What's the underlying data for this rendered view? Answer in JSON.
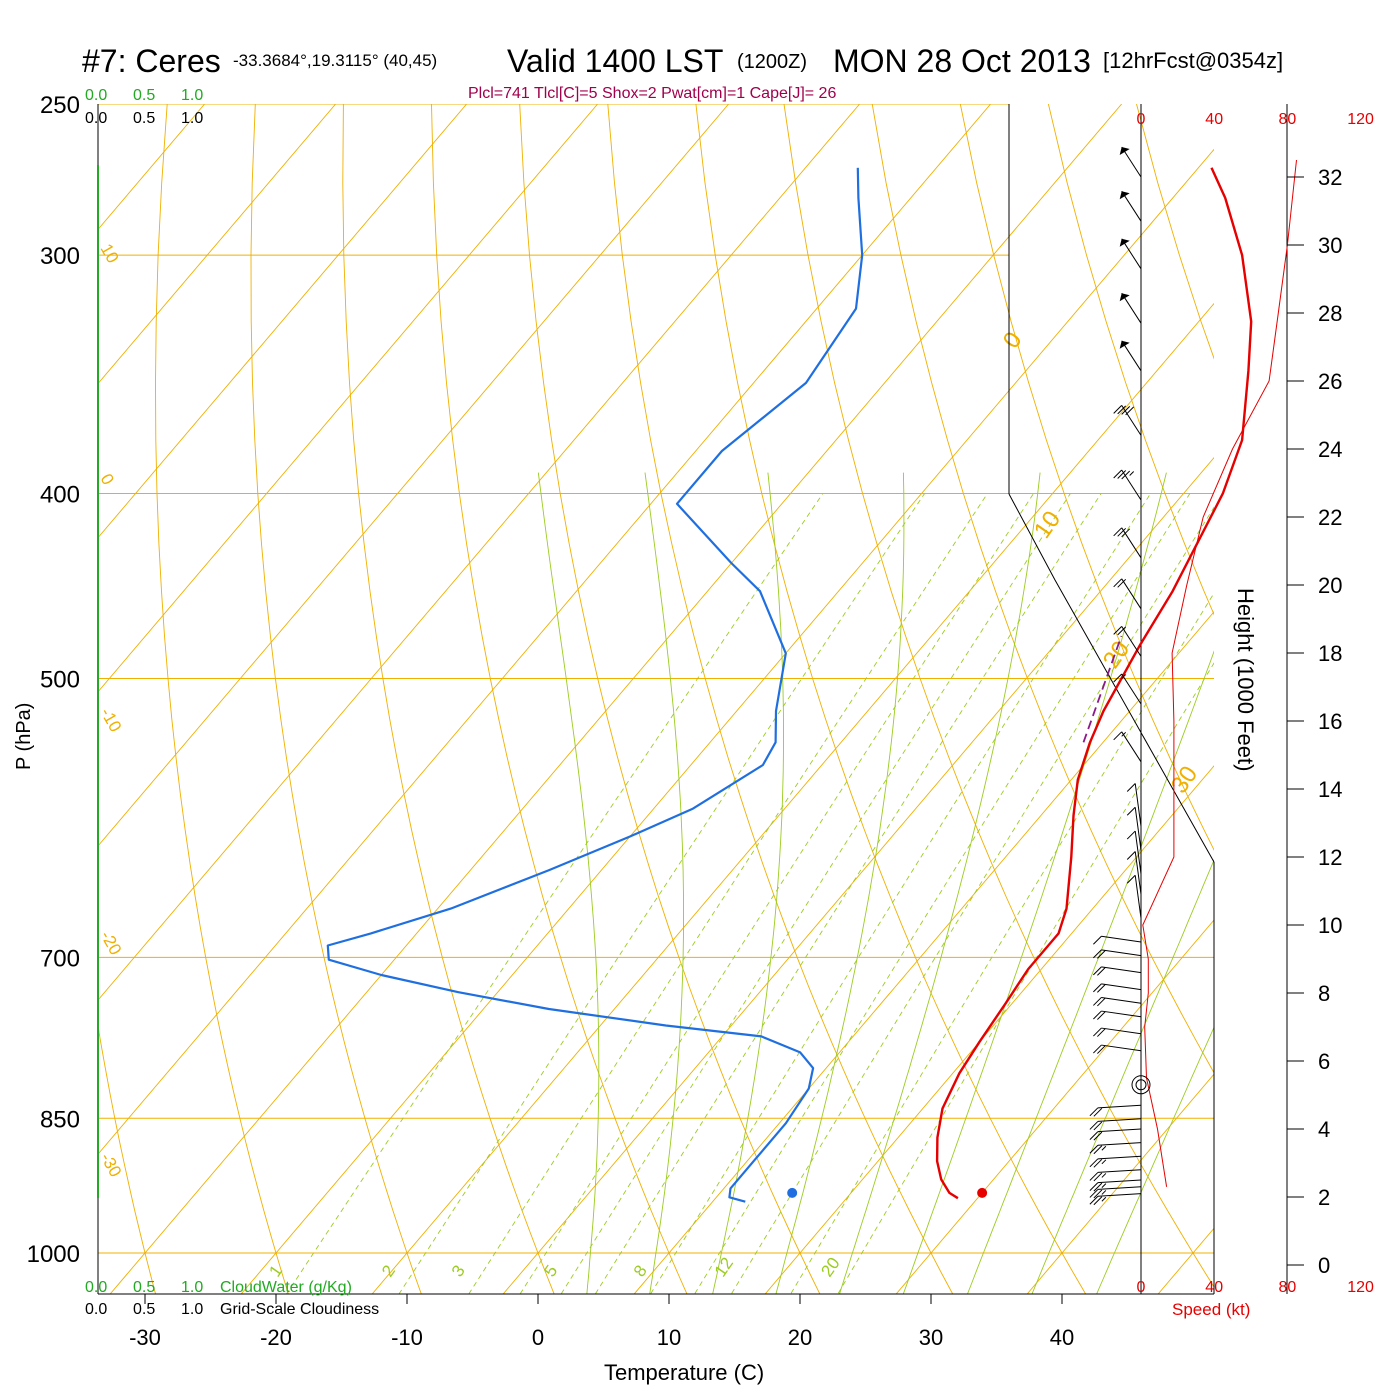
{
  "header": {
    "station": "#7: Ceres",
    "coords": "-33.3684°,19.3115° (40,45)",
    "valid": "Valid 1400 LST",
    "utc": "(1200Z)",
    "date": "MON 28 Oct 2013",
    "forecast": "[12hrFcst@0354z]",
    "indices": "Plcl=741 Tlcl[C]=5 Shox=2 Pwat[cm]=1 Cape[J]= 26"
  },
  "colors": {
    "temperature": "#e60000",
    "dewpoint": "#1f6fe0",
    "isotherm_isobar": "#f0b000",
    "dry_adiabat": "#f0b000",
    "moist_adiabat": "#9ccc20",
    "mixing_ratio": "#9ccc20",
    "parcel": "#8b1a8b",
    "cloudwater": "#22aa22",
    "speed": "#e60000",
    "indices_text": "#a0004c"
  },
  "legend": {
    "cloudwater_scale": [
      "0.0",
      "0.5",
      "1.0"
    ],
    "cloudwater_label": "CloudWater (g/Kg)",
    "cloudiness_scale": [
      "0.0",
      "0.5",
      "1.0"
    ],
    "cloudiness_label": "Grid-Scale Cloudiness"
  },
  "chart_data": {
    "type": "skew-t log-p sounding",
    "xlabel": "Temperature (C)",
    "ylabel": "P (hPa)",
    "y2label": "Height (1000 Feet)",
    "speed_label": "Speed (kt)",
    "x_ticks": [
      -30,
      -20,
      -10,
      0,
      10,
      20,
      30,
      40
    ],
    "p_ticks": [
      250,
      300,
      400,
      500,
      700,
      850,
      1000
    ],
    "p_range": [
      1100,
      250
    ],
    "height_ticks": [
      0,
      2,
      4,
      6,
      8,
      10,
      12,
      14,
      16,
      18,
      20,
      22,
      24,
      26,
      28,
      30,
      32
    ],
    "speed_ticks": [
      0,
      40,
      80,
      120
    ],
    "temperature_profile": [
      {
        "p": 936,
        "t": 28.5
      },
      {
        "p": 930,
        "t": 27.5
      },
      {
        "p": 915,
        "t": 26.0
      },
      {
        "p": 895,
        "t": 24.5
      },
      {
        "p": 870,
        "t": 23.0
      },
      {
        "p": 840,
        "t": 21.5
      },
      {
        "p": 805,
        "t": 20.5
      },
      {
        "p": 775,
        "t": 20.0
      },
      {
        "p": 740,
        "t": 19.5
      },
      {
        "p": 710,
        "t": 19.0
      },
      {
        "p": 700,
        "t": 19.0
      },
      {
        "p": 680,
        "t": 19.0
      },
      {
        "p": 660,
        "t": 18.0
      },
      {
        "p": 620,
        "t": 15.0
      },
      {
        "p": 590,
        "t": 12.5
      },
      {
        "p": 565,
        "t": 10.5
      },
      {
        "p": 540,
        "t": 9.0
      },
      {
        "p": 520,
        "t": 8.0
      },
      {
        "p": 480,
        "t": 6.5
      },
      {
        "p": 450,
        "t": 5.5
      },
      {
        "p": 400,
        "t": 3.0
      },
      {
        "p": 375,
        "t": 1.0
      },
      {
        "p": 345,
        "t": -3.0
      },
      {
        "p": 325,
        "t": -6.0
      },
      {
        "p": 300,
        "t": -11.0
      },
      {
        "p": 280,
        "t": -16.0
      },
      {
        "p": 270,
        "t": -19.0
      }
    ],
    "dewpoint_profile": [
      {
        "p": 940,
        "t": 12.5
      },
      {
        "p": 935,
        "t": 11.0
      },
      {
        "p": 925,
        "t": 10.5
      },
      {
        "p": 895,
        "t": 10.5
      },
      {
        "p": 855,
        "t": 10.5
      },
      {
        "p": 820,
        "t": 10.0
      },
      {
        "p": 800,
        "t": 9.0
      },
      {
        "p": 785,
        "t": 7.0
      },
      {
        "p": 770,
        "t": 3.0
      },
      {
        "p": 760,
        "t": -5.0
      },
      {
        "p": 745,
        "t": -15.0
      },
      {
        "p": 730,
        "t": -23.0
      },
      {
        "p": 715,
        "t": -30.0
      },
      {
        "p": 702,
        "t": -35.0
      },
      {
        "p": 690,
        "t": -36.0
      },
      {
        "p": 680,
        "t": -33.5
      },
      {
        "p": 660,
        "t": -29.0
      },
      {
        "p": 630,
        "t": -24.0
      },
      {
        "p": 605,
        "t": -20.0
      },
      {
        "p": 585,
        "t": -17.0
      },
      {
        "p": 555,
        "t": -14.5
      },
      {
        "p": 540,
        "t": -15.0
      },
      {
        "p": 520,
        "t": -17.0
      },
      {
        "p": 485,
        "t": -20.0
      },
      {
        "p": 450,
        "t": -26.0
      },
      {
        "p": 435,
        "t": -30.0
      },
      {
        "p": 405,
        "t": -38.0
      },
      {
        "p": 380,
        "t": -38.0
      },
      {
        "p": 350,
        "t": -36.0
      },
      {
        "p": 320,
        "t": -37.0
      },
      {
        "p": 300,
        "t": -40.0
      },
      {
        "p": 280,
        "t": -44.0
      },
      {
        "p": 270,
        "t": -46.0
      }
    ],
    "parcel_segment": [
      {
        "p": 540,
        "t": 8.5
      },
      {
        "p": 475,
        "t": 4.5
      }
    ],
    "surface_temperature": 30,
    "surface_dewpoint": 15.5,
    "surface_pressure": 930,
    "isotherm_labels": [
      -30,
      -20,
      -10,
      0,
      10,
      20,
      30
    ],
    "mixing_ratio_labels": [
      1,
      2,
      3,
      5,
      8,
      12,
      20
    ],
    "moist_adiabat_bases": [
      4,
      9,
      14,
      19,
      24,
      29,
      34,
      39,
      44
    ],
    "wind_speed_profile": [
      {
        "h": 2.3,
        "s": 14
      },
      {
        "h": 4,
        "s": 9
      },
      {
        "h": 5.5,
        "s": 3
      },
      {
        "h": 7,
        "s": 2
      },
      {
        "h": 8,
        "s": 4
      },
      {
        "h": 9,
        "s": 4
      },
      {
        "h": 10,
        "s": 1
      },
      {
        "h": 12,
        "s": 18
      },
      {
        "h": 14,
        "s": 18
      },
      {
        "h": 16,
        "s": 18
      },
      {
        "h": 18,
        "s": 17
      },
      {
        "h": 20,
        "s": 25
      },
      {
        "h": 22,
        "s": 34
      },
      {
        "h": 24,
        "s": 50
      },
      {
        "h": 26,
        "s": 70
      },
      {
        "h": 28,
        "s": 75
      },
      {
        "h": 30,
        "s": 80
      },
      {
        "h": 32.5,
        "s": 85
      }
    ],
    "wind_barbs": [
      {
        "h": 2.1,
        "s": 25
      },
      {
        "h": 2.3,
        "s": 25
      },
      {
        "h": 2.5,
        "s": 25
      },
      {
        "h": 2.8,
        "s": 25
      },
      {
        "h": 3.2,
        "s": 25
      },
      {
        "h": 3.6,
        "s": 25
      },
      {
        "h": 4.0,
        "s": 20
      },
      {
        "h": 4.3,
        "s": 20
      },
      {
        "h": 4.7,
        "s": 20
      },
      {
        "h": 6.3,
        "s": 20
      },
      {
        "h": 6.8,
        "s": 20
      },
      {
        "h": 7.3,
        "s": 20
      },
      {
        "h": 7.7,
        "s": 20
      },
      {
        "h": 8.1,
        "s": 20
      },
      {
        "h": 8.6,
        "s": 20
      },
      {
        "h": 9.1,
        "s": 20
      },
      {
        "h": 9.5,
        "s": 10
      },
      {
        "h": 10.2,
        "s": 10
      },
      {
        "h": 10.9,
        "s": 10
      },
      {
        "h": 11.5,
        "s": 10
      },
      {
        "h": 12.2,
        "s": 10
      },
      {
        "h": 12.9,
        "s": 10
      },
      {
        "h": 14.8,
        "s": 15
      },
      {
        "h": 16.5,
        "s": 15
      },
      {
        "h": 17.9,
        "s": 20
      },
      {
        "h": 19.3,
        "s": 20
      },
      {
        "h": 20.8,
        "s": 30
      },
      {
        "h": 22.5,
        "s": 35
      },
      {
        "h": 24.4,
        "s": 40
      },
      {
        "h": 26.3,
        "s": 50
      },
      {
        "h": 27.7,
        "s": 50
      },
      {
        "h": 29.3,
        "s": 50
      },
      {
        "h": 30.7,
        "s": 50
      },
      {
        "h": 32.0,
        "s": 50
      }
    ],
    "calm_circle_height": 5.3
  }
}
